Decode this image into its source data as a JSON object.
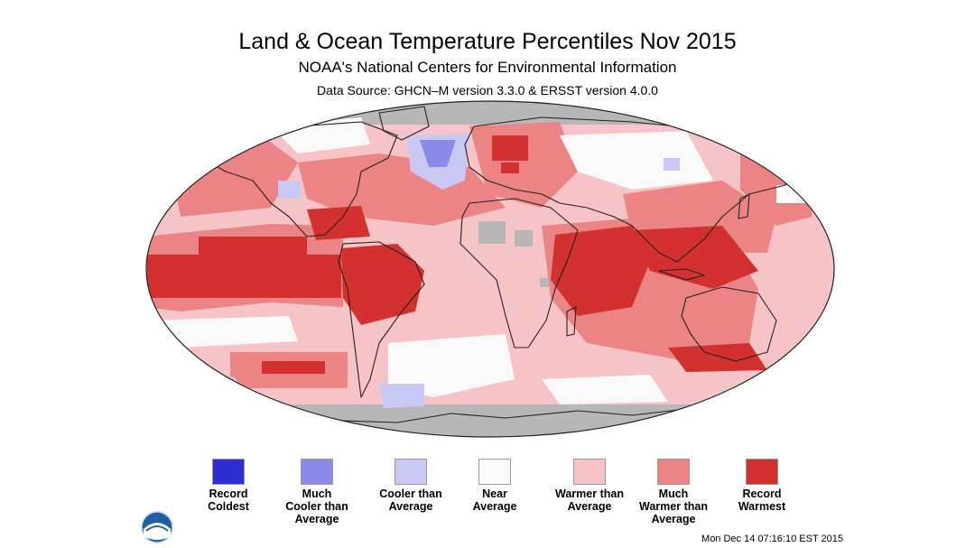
{
  "header": {
    "title": "Land & Ocean Temperature Percentiles Nov 2015",
    "subtitle": "NOAA's National Centers for Environmental Information",
    "source": "Data Source: GHCN–M version 3.3.0 & ERSST version 4.0.0"
  },
  "legend": {
    "items": [
      {
        "label": "Record\nColdest",
        "color": "#2d2fd3"
      },
      {
        "label": "Much\nCooler than\nAverage",
        "color": "#8a8ae8"
      },
      {
        "label": "Cooler than\nAverage",
        "color": "#c9c8f4"
      },
      {
        "label": "Near\nAverage",
        "color": "#f9f9f9"
      },
      {
        "label": "Warmer than\nAverage",
        "color": "#f6c4c6"
      },
      {
        "label": "Much\nWarmer than\nAverage",
        "color": "#ec8486"
      },
      {
        "label": "Record\nWarmest",
        "color": "#d3312f"
      }
    ]
  },
  "map": {
    "missing_data_color": "#b7b7b7"
  },
  "footer": {
    "timestamp": "Mon Dec 14 07:16:10 EST 2015"
  },
  "logo": {
    "name": "noaa-logo"
  }
}
